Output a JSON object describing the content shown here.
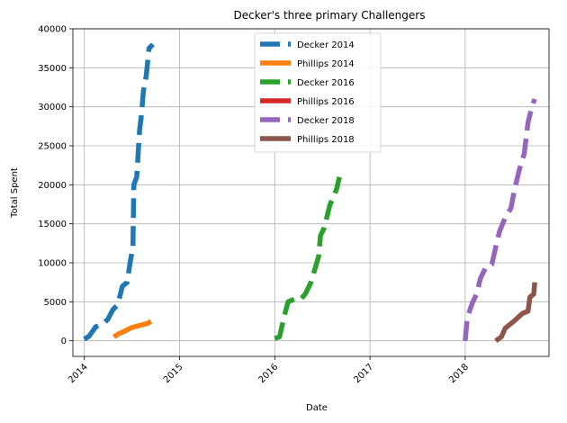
{
  "chart_data": {
    "type": "line",
    "title": "Decker's three primary Challengers",
    "xlabel": "Date",
    "ylabel": "Total Spent",
    "xlim": [
      2013.88,
      2018.88
    ],
    "ylim": [
      -2000,
      40000
    ],
    "xticks": [
      {
        "value": 2014,
        "label": "2014"
      },
      {
        "value": 2015,
        "label": "2015"
      },
      {
        "value": 2016,
        "label": "2016"
      },
      {
        "value": 2017,
        "label": "2017"
      },
      {
        "value": 2018,
        "label": "2018"
      }
    ],
    "yticks": [
      {
        "value": 0,
        "label": "0"
      },
      {
        "value": 5000,
        "label": "5000"
      },
      {
        "value": 10000,
        "label": "10000"
      },
      {
        "value": 15000,
        "label": "15000"
      },
      {
        "value": 20000,
        "label": "20000"
      },
      {
        "value": 25000,
        "label": "25000"
      },
      {
        "value": 30000,
        "label": "30000"
      },
      {
        "value": 35000,
        "label": "35000"
      },
      {
        "value": 40000,
        "label": "40000"
      }
    ],
    "grid": true,
    "legend_position": "top-center",
    "series": [
      {
        "name": "Decker 2014",
        "color": "#1f77b4",
        "dashed": true,
        "points": [
          [
            2014.0,
            200
          ],
          [
            2014.05,
            600
          ],
          [
            2014.12,
            1800
          ],
          [
            2014.2,
            2200
          ],
          [
            2014.25,
            2800
          ],
          [
            2014.3,
            4000
          ],
          [
            2014.35,
            4600
          ],
          [
            2014.4,
            7000
          ],
          [
            2014.45,
            7500
          ],
          [
            2014.48,
            10000
          ],
          [
            2014.51,
            12000
          ],
          [
            2014.52,
            20000
          ],
          [
            2014.55,
            21000
          ],
          [
            2014.58,
            27000
          ],
          [
            2014.6,
            29000
          ],
          [
            2014.62,
            32000
          ],
          [
            2014.65,
            34000
          ],
          [
            2014.68,
            37500
          ],
          [
            2014.72,
            38000
          ]
        ]
      },
      {
        "name": "Phillips 2014",
        "color": "#ff7f0e",
        "dashed": false,
        "points": [
          [
            2014.31,
            500
          ],
          [
            2014.36,
            900
          ],
          [
            2014.4,
            1100
          ],
          [
            2014.45,
            1400
          ],
          [
            2014.5,
            1700
          ],
          [
            2014.56,
            1900
          ],
          [
            2014.62,
            2100
          ],
          [
            2014.66,
            2200
          ],
          [
            2014.7,
            2500
          ]
        ]
      },
      {
        "name": "Decker 2016",
        "color": "#2ca02c",
        "dashed": true,
        "points": [
          [
            2016.0,
            300
          ],
          [
            2016.05,
            500
          ],
          [
            2016.1,
            3200
          ],
          [
            2016.14,
            5000
          ],
          [
            2016.22,
            5400
          ],
          [
            2016.27,
            5300
          ],
          [
            2016.32,
            6000
          ],
          [
            2016.38,
            7500
          ],
          [
            2016.46,
            10800
          ],
          [
            2016.48,
            13500
          ],
          [
            2016.52,
            14500
          ],
          [
            2016.55,
            16000
          ],
          [
            2016.58,
            17500
          ],
          [
            2016.62,
            18500
          ],
          [
            2016.65,
            19500
          ],
          [
            2016.68,
            21000
          ]
        ]
      },
      {
        "name": "Phillips 2016",
        "color": "#d62728",
        "dashed": false,
        "points": []
      },
      {
        "name": "Decker 2018",
        "color": "#9467bd",
        "dashed": true,
        "points": [
          [
            2018.0,
            0
          ],
          [
            2018.02,
            2800
          ],
          [
            2018.05,
            4000
          ],
          [
            2018.08,
            5000
          ],
          [
            2018.12,
            6000
          ],
          [
            2018.16,
            8000
          ],
          [
            2018.22,
            9500
          ],
          [
            2018.28,
            9800
          ],
          [
            2018.32,
            12000
          ],
          [
            2018.36,
            14000
          ],
          [
            2018.42,
            15800
          ],
          [
            2018.48,
            17000
          ],
          [
            2018.52,
            19500
          ],
          [
            2018.57,
            22000
          ],
          [
            2018.62,
            24000
          ],
          [
            2018.66,
            28000
          ],
          [
            2018.7,
            30000
          ],
          [
            2018.73,
            31000
          ]
        ]
      },
      {
        "name": "Phillips 2018",
        "color": "#8c564b",
        "dashed": false,
        "points": [
          [
            2018.32,
            0
          ],
          [
            2018.38,
            500
          ],
          [
            2018.42,
            1600
          ],
          [
            2018.52,
            2600
          ],
          [
            2018.6,
            3500
          ],
          [
            2018.66,
            3800
          ],
          [
            2018.68,
            5600
          ],
          [
            2018.72,
            6000
          ],
          [
            2018.73,
            7500
          ]
        ]
      }
    ]
  }
}
